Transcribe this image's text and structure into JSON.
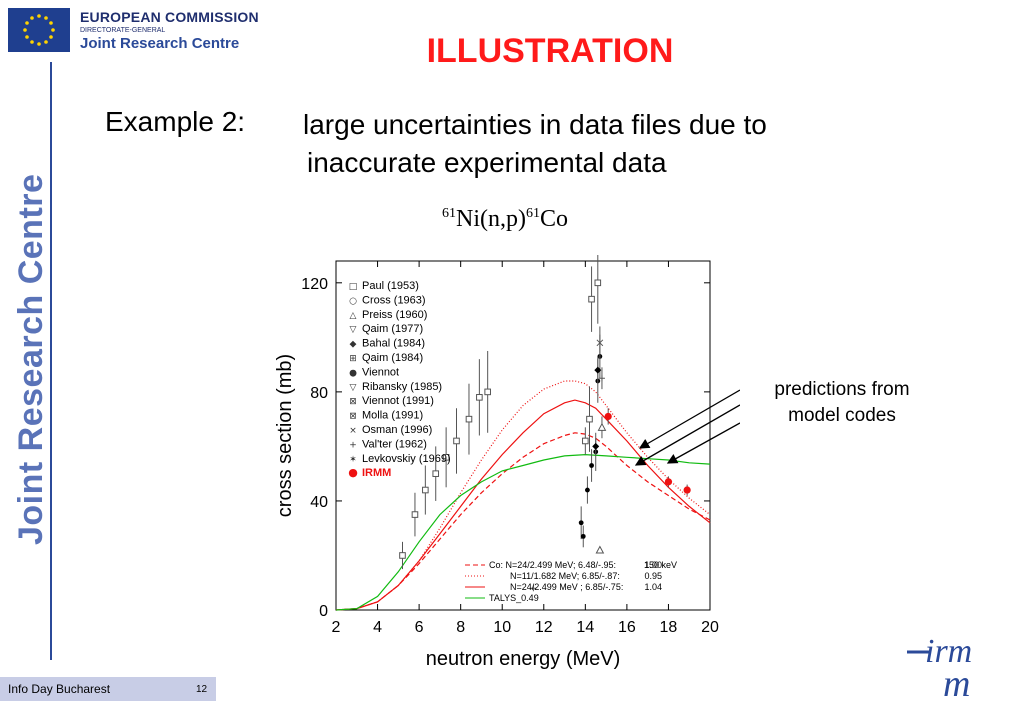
{
  "header": {
    "org_title": "EUROPEAN COMMISSION",
    "org_dg": "DIRECTORATE-GENERAL",
    "org_centre": "Joint Research Centre",
    "side_text": "Joint Research Centre",
    "slide_title": "ILLUSTRATION"
  },
  "example": {
    "label": "Example 2:",
    "line1": "large uncertainties in data files due to",
    "line2": "inaccurate experimental data"
  },
  "reaction": {
    "mass1": "61",
    "mid": "Ni(n,p)",
    "mass2": "61",
    "end": "Co"
  },
  "annotation": {
    "line1": "predictions from",
    "line2": "model codes"
  },
  "footer": {
    "event": "Info Day Bucharest",
    "page": "12"
  },
  "logo": {
    "top": "irm",
    "bottom": "m"
  },
  "colors": {
    "title_red": "#ff1a1a",
    "navy": "#1f2e6e",
    "jrc_blue": "#2b4a99",
    "irmm_red": "#ee1111",
    "talys_green": "#11bb11"
  },
  "chart_data": {
    "type": "scatter",
    "xlabel": "neutron energy (MeV)",
    "ylabel": "cross section  (mb)",
    "xlim": [
      2,
      20
    ],
    "ylim": [
      0,
      128
    ],
    "xticks": [
      "2",
      "4",
      "6",
      "8",
      "10",
      "12",
      "14",
      "16",
      "18",
      "20"
    ],
    "yticks": [
      "0",
      "40",
      "80",
      "120"
    ],
    "legend_position": "top-left",
    "legend": [
      {
        "symbol": "□",
        "label": "Paul (1953)"
      },
      {
        "symbol": "○",
        "label": "Cross (1963)"
      },
      {
        "symbol": "△",
        "label": "Preiss (1960)"
      },
      {
        "symbol": "▽",
        "label": "Qaim (1977)"
      },
      {
        "symbol": "◆",
        "label": "Bahal (1984)"
      },
      {
        "symbol": "⊞",
        "label": "Qaim (1984)"
      },
      {
        "symbol": "●",
        "label": "Viennot"
      },
      {
        "symbol": "▽",
        "label": "Ribansky (1985)"
      },
      {
        "symbol": "⊠",
        "label": "Viennot (1991)"
      },
      {
        "symbol": "⊠",
        "label": "Molla (1991)"
      },
      {
        "symbol": "×",
        "label": "Osman (1996)"
      },
      {
        "symbol": "+",
        "label": "Val'ter (1962)"
      },
      {
        "symbol": "✶",
        "label": "Levkovskiy (1969)"
      },
      {
        "symbol": "●",
        "label": "IRMM"
      }
    ],
    "curve_legend": [
      {
        "label": "Co: N=24/2.499 MeV; 6.48/-.95:",
        "value": "1.00",
        "extra": "150 keV",
        "color": "#ee1111",
        "dash": "5,3"
      },
      {
        "label": "N=11/1.682 MeV; 6.85/-.87:",
        "value": "0.95",
        "color": "#ee1111",
        "dash": "1,2"
      },
      {
        "label": "N=24/2.499 MeV ; 6.85/-.75:",
        "value": "1.04",
        "color": "#ee1111",
        "dash": ""
      },
      {
        "label": "TALYS_0.49",
        "value": "",
        "color": "#11bb11",
        "dash": ""
      }
    ],
    "curves": [
      {
        "name": "Co: N=24/2.499 MeV; 6.48/-.95:",
        "color": "#ee1111",
        "dash": "5,3",
        "x": [
          2.0,
          3.0,
          4.0,
          5.0,
          6.0,
          7.0,
          8.0,
          9.0,
          10.0,
          11.0,
          12.0,
          13.0,
          13.5,
          14.0,
          14.5,
          15.0,
          16.0,
          17.0,
          18.0,
          19.0,
          20.0
        ],
        "y": [
          0,
          0.5,
          3,
          9,
          17,
          26,
          35,
          43,
          50,
          56,
          61,
          64,
          65,
          64.5,
          63,
          60,
          53,
          47,
          42,
          37,
          33
        ]
      },
      {
        "name": "N=11/1.682 MeV; 6.85/-.87:",
        "color": "#ee1111",
        "dash": "1,2",
        "x": [
          2.0,
          3.0,
          4.0,
          5.0,
          6.0,
          7.0,
          8.0,
          9.0,
          10.0,
          11.0,
          12.0,
          13.0,
          13.5,
          14.0,
          14.5,
          15.0,
          16.0,
          17.0,
          18.0,
          19.0,
          20.0
        ],
        "y": [
          0,
          0.5,
          3,
          9,
          18,
          30,
          43,
          55,
          66,
          75,
          81,
          84,
          84,
          83,
          80,
          75,
          65,
          56,
          48,
          41,
          35
        ]
      },
      {
        "name": "N=24/2.499 MeV ; 6.85/-.75:",
        "color": "#ee1111",
        "dash": "",
        "x": [
          2.0,
          3.0,
          4.0,
          5.0,
          6.0,
          7.0,
          8.0,
          9.0,
          10.0,
          11.0,
          12.0,
          13.0,
          13.5,
          14.0,
          14.5,
          15.0,
          16.0,
          17.0,
          18.0,
          19.0,
          20.0
        ],
        "y": [
          0,
          0.5,
          3,
          9,
          18,
          28,
          38,
          48,
          57,
          65,
          72,
          76,
          77,
          76,
          74,
          70,
          62,
          53,
          45,
          38,
          32
        ]
      },
      {
        "name": "TALYS_0.49",
        "color": "#11bb11",
        "dash": "",
        "x": [
          2.0,
          3.0,
          4.0,
          5.0,
          6.0,
          7.0,
          8.0,
          9.0,
          10.0,
          11.0,
          12.0,
          13.0,
          14.0,
          15.0,
          16.0,
          17.0,
          18.0,
          19.0,
          20.0
        ],
        "y": [
          0,
          0.5,
          5,
          14,
          25,
          35,
          42,
          47,
          51,
          53,
          55,
          56.5,
          57,
          56.5,
          56,
          55.5,
          55,
          54,
          53.5
        ]
      }
    ],
    "points": [
      {
        "x": 5.2,
        "y": 20,
        "err": 5,
        "marker": "square"
      },
      {
        "x": 5.8,
        "y": 35,
        "err": 8,
        "marker": "square"
      },
      {
        "x": 6.3,
        "y": 44,
        "err": 9,
        "marker": "square"
      },
      {
        "x": 6.8,
        "y": 50,
        "err": 10,
        "marker": "square"
      },
      {
        "x": 7.3,
        "y": 56,
        "err": 11,
        "marker": "square"
      },
      {
        "x": 7.8,
        "y": 62,
        "err": 12,
        "marker": "square"
      },
      {
        "x": 8.4,
        "y": 70,
        "err": 13,
        "marker": "square"
      },
      {
        "x": 8.9,
        "y": 78,
        "err": 14,
        "marker": "square"
      },
      {
        "x": 9.3,
        "y": 80,
        "err": 15,
        "marker": "square"
      },
      {
        "x": 11.5,
        "y": 8,
        "err": 0,
        "marker": "plus"
      },
      {
        "x": 13.8,
        "y": 32,
        "err": 6,
        "marker": "dot"
      },
      {
        "x": 13.9,
        "y": 27,
        "err": 4,
        "marker": "dot"
      },
      {
        "x": 14.1,
        "y": 44,
        "err": 5,
        "marker": "dot"
      },
      {
        "x": 14.3,
        "y": 53,
        "err": 6,
        "marker": "dot"
      },
      {
        "x": 14.5,
        "y": 58,
        "err": 7,
        "marker": "dot"
      },
      {
        "x": 14.6,
        "y": 84,
        "err": 8,
        "marker": "dot"
      },
      {
        "x": 14.7,
        "y": 93,
        "err": 8,
        "marker": "dot"
      },
      {
        "x": 14.2,
        "y": 70,
        "err": 12,
        "marker": "qaim84"
      },
      {
        "x": 14.6,
        "y": 120,
        "err": 15,
        "marker": "qaim84"
      },
      {
        "x": 14.3,
        "y": 114,
        "err": 12,
        "marker": "viennot91"
      },
      {
        "x": 14.7,
        "y": 98,
        "err": 6,
        "marker": "cross"
      },
      {
        "x": 14.0,
        "y": 62,
        "err": 5,
        "marker": "viennot91"
      },
      {
        "x": 14.8,
        "y": 67,
        "err": 4,
        "marker": "triangle"
      },
      {
        "x": 14.7,
        "y": 22,
        "err": 0,
        "marker": "triangle"
      },
      {
        "x": 14.5,
        "y": 60,
        "err": 3,
        "marker": "diamond"
      },
      {
        "x": 14.6,
        "y": 88,
        "err": 5,
        "marker": "diamond"
      },
      {
        "x": 14.8,
        "y": 85,
        "err": 4,
        "marker": "plus"
      },
      {
        "x": 15.1,
        "y": 71,
        "err": 3,
        "marker": "irmm"
      },
      {
        "x": 18.0,
        "y": 47,
        "err": 2,
        "marker": "irmm"
      },
      {
        "x": 18.9,
        "y": 44,
        "err": 2,
        "marker": "irmm"
      }
    ]
  }
}
